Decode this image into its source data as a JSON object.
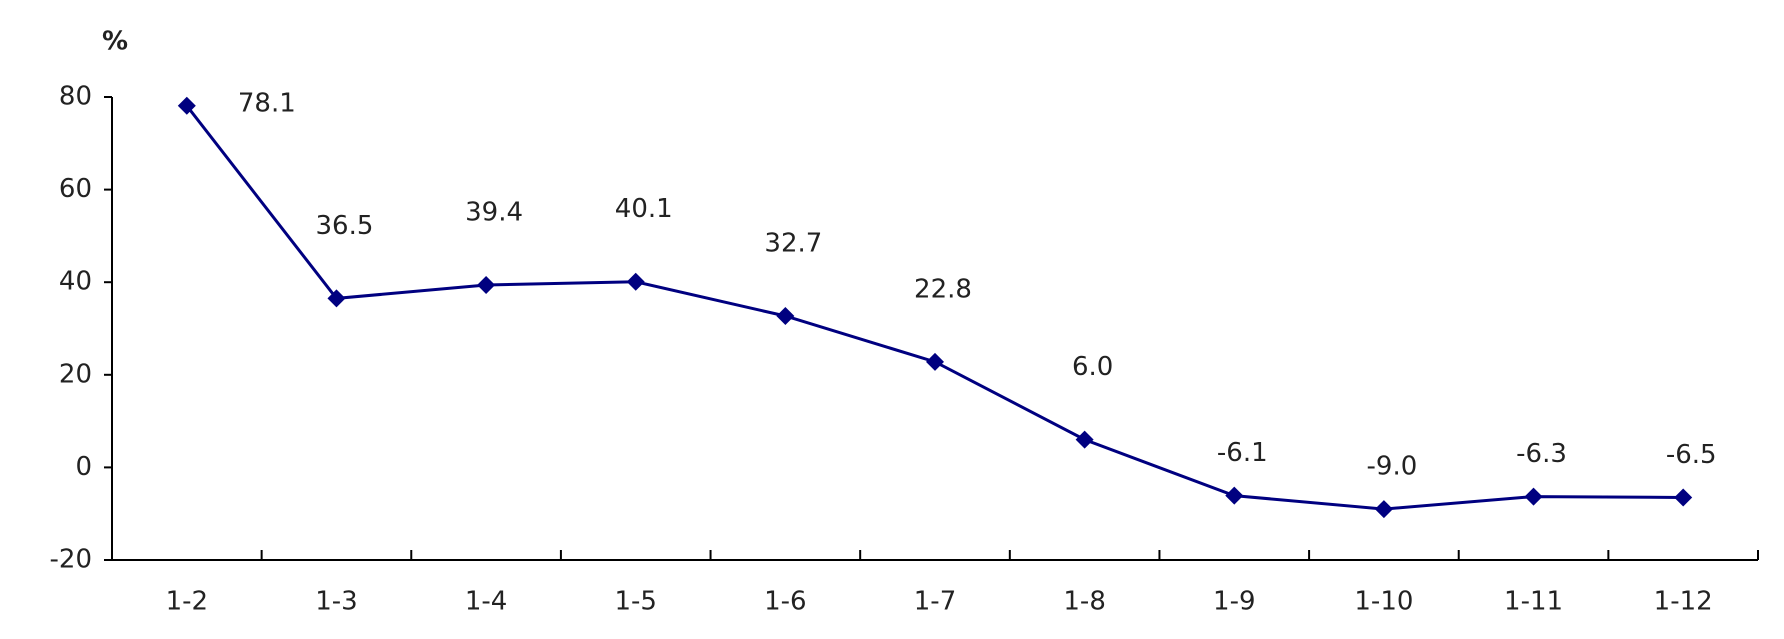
{
  "chart_data": {
    "type": "line",
    "y_unit": "%",
    "categories": [
      "1-2",
      "1-3",
      "1-4",
      "1-5",
      "1-6",
      "1-7",
      "1-8",
      "1-9",
      "1-10",
      "1-11",
      "1-12"
    ],
    "series": [
      {
        "color": "#000080",
        "values": [
          78.1,
          36.5,
          39.4,
          40.1,
          32.7,
          22.8,
          6.0,
          -6.1,
          -9.0,
          -6.3,
          -6.5
        ],
        "value_labels": [
          "78.1",
          "36.5",
          "39.4",
          "40.1",
          "32.7",
          "22.8",
          "6.0",
          "-6.1",
          "-9.0",
          "-6.3",
          "-6.5"
        ]
      }
    ],
    "ylim": [
      -20,
      80
    ],
    "yticks": [
      -20,
      0,
      20,
      40,
      60,
      80
    ]
  }
}
